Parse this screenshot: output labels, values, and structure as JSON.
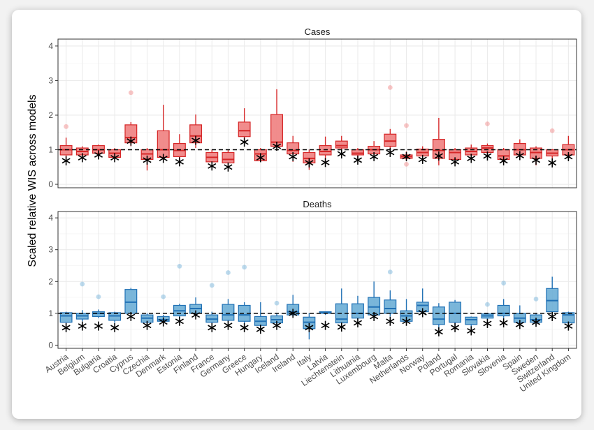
{
  "ylabel": "Scaled relative WIS across models",
  "yticks": [
    0,
    1,
    2,
    3,
    4
  ],
  "countries": [
    "Austria",
    "Belgium",
    "Bulgaria",
    "Croatia",
    "Cyprus",
    "Czechia",
    "Denmark",
    "Estonia",
    "Finland",
    "France",
    "Germany",
    "Greece",
    "Hungary",
    "Iceland",
    "Ireland",
    "Italy",
    "Latvia",
    "Liechtenstein",
    "Lithuania",
    "Luxembourg",
    "Malta",
    "Netherlands",
    "Norway",
    "Poland",
    "Portugal",
    "Romania",
    "Slovakia",
    "Slovenia",
    "Spain",
    "Sweden",
    "Switzerland",
    "United Kingdom"
  ],
  "colors": {
    "cases_fill": "#f08080",
    "cases_line": "#d62728",
    "deaths_fill": "#6baed6",
    "deaths_line": "#2171b5",
    "panel_border": "#333333",
    "grid": "#ebebeb"
  },
  "chart_data": [
    {
      "type": "box",
      "title": "Cases",
      "ylim": [
        -0.1,
        4.2
      ],
      "reference_line": 1,
      "boxes": [
        {
          "q1": 0.85,
          "med": 1.0,
          "q3": 1.12,
          "lo": 0.72,
          "hi": 1.35,
          "out": [
            1.67
          ],
          "star": 0.68
        },
        {
          "q1": 0.85,
          "med": 0.95,
          "q3": 1.05,
          "lo": 0.75,
          "hi": 1.1,
          "out": [],
          "star": 0.77
        },
        {
          "q1": 0.9,
          "med": 1.0,
          "q3": 1.12,
          "lo": 0.8,
          "hi": 1.15,
          "out": [],
          "star": 0.85
        },
        {
          "q1": 0.78,
          "med": 0.9,
          "q3": 1.0,
          "lo": 0.7,
          "hi": 1.05,
          "out": [],
          "star": 0.77
        },
        {
          "q1": 1.2,
          "med": 1.35,
          "q3": 1.72,
          "lo": 1.1,
          "hi": 1.8,
          "out": [
            2.65
          ],
          "star": 1.25
        },
        {
          "q1": 0.72,
          "med": 0.88,
          "q3": 1.0,
          "lo": 0.4,
          "hi": 1.05,
          "out": [],
          "star": 0.7
        },
        {
          "q1": 0.78,
          "med": 1.0,
          "q3": 1.55,
          "lo": 0.72,
          "hi": 2.3,
          "out": [],
          "star": 0.75
        },
        {
          "q1": 0.8,
          "med": 0.98,
          "q3": 1.18,
          "lo": 0.65,
          "hi": 1.45,
          "out": [],
          "star": 0.65
        },
        {
          "q1": 1.2,
          "med": 1.4,
          "q3": 1.72,
          "lo": 1.05,
          "hi": 2.02,
          "out": [],
          "star": 1.27
        },
        {
          "q1": 0.65,
          "med": 0.78,
          "q3": 0.92,
          "lo": 0.55,
          "hi": 1.0,
          "out": [],
          "star": 0.53
        },
        {
          "q1": 0.62,
          "med": 0.72,
          "q3": 0.92,
          "lo": 0.5,
          "hi": 1.0,
          "out": [],
          "star": 0.5
        },
        {
          "q1": 1.38,
          "med": 1.55,
          "q3": 1.8,
          "lo": 1.2,
          "hi": 2.2,
          "out": [],
          "star": 1.22
        },
        {
          "q1": 0.68,
          "med": 0.88,
          "q3": 1.0,
          "lo": 0.65,
          "hi": 1.05,
          "out": [],
          "star": 0.77
        },
        {
          "q1": 1.1,
          "med": 1.22,
          "q3": 2.02,
          "lo": 1.05,
          "hi": 2.75,
          "out": [],
          "star": 1.1
        },
        {
          "q1": 0.88,
          "med": 0.98,
          "q3": 1.2,
          "lo": 0.65,
          "hi": 1.4,
          "out": [],
          "star": 0.8
        },
        {
          "q1": 0.62,
          "med": 0.75,
          "q3": 0.92,
          "lo": 0.42,
          "hi": 1.0,
          "out": [],
          "star": 0.62
        },
        {
          "q1": 0.85,
          "med": 0.95,
          "q3": 1.12,
          "lo": 0.65,
          "hi": 1.38,
          "out": [],
          "star": 0.63
        },
        {
          "q1": 1.05,
          "med": 1.12,
          "q3": 1.25,
          "lo": 0.95,
          "hi": 1.4,
          "out": [],
          "star": 0.88
        },
        {
          "q1": 0.85,
          "med": 0.9,
          "q3": 1.0,
          "lo": 0.7,
          "hi": 1.05,
          "out": [],
          "star": 0.7
        },
        {
          "q1": 0.88,
          "med": 1.0,
          "q3": 1.1,
          "lo": 0.78,
          "hi": 1.25,
          "out": [],
          "star": 0.8
        },
        {
          "q1": 1.1,
          "med": 1.25,
          "q3": 1.45,
          "lo": 1.0,
          "hi": 1.6,
          "out": [
            2.8
          ],
          "star": 0.92
        },
        {
          "q1": 0.75,
          "med": 0.8,
          "q3": 0.85,
          "lo": 0.7,
          "hi": 0.95,
          "out": [
            1.7,
            0.58
          ],
          "star": 0.8
        },
        {
          "q1": 0.82,
          "med": 0.92,
          "q3": 1.02,
          "lo": 0.75,
          "hi": 1.1,
          "out": [],
          "star": 0.72
        },
        {
          "q1": 0.75,
          "med": 0.98,
          "q3": 1.3,
          "lo": 0.55,
          "hi": 1.92,
          "out": [],
          "star": 0.82
        },
        {
          "q1": 0.72,
          "med": 0.92,
          "q3": 1.0,
          "lo": 0.6,
          "hi": 1.05,
          "out": [],
          "star": 0.65
        },
        {
          "q1": 0.85,
          "med": 0.95,
          "q3": 1.05,
          "lo": 0.75,
          "hi": 1.15,
          "out": [],
          "star": 0.75
        },
        {
          "q1": 0.92,
          "med": 1.05,
          "q3": 1.12,
          "lo": 0.85,
          "hi": 1.18,
          "out": [
            1.75
          ],
          "star": 0.82
        },
        {
          "q1": 0.72,
          "med": 0.82,
          "q3": 1.0,
          "lo": 0.6,
          "hi": 1.05,
          "out": [],
          "star": 0.68
        },
        {
          "q1": 0.85,
          "med": 1.0,
          "q3": 1.18,
          "lo": 0.75,
          "hi": 1.3,
          "out": [],
          "star": 0.83
        },
        {
          "q1": 0.75,
          "med": 0.92,
          "q3": 1.05,
          "lo": 0.55,
          "hi": 1.1,
          "out": [],
          "star": 0.7
        },
        {
          "q1": 0.82,
          "med": 0.9,
          "q3": 1.0,
          "lo": 0.75,
          "hi": 1.02,
          "out": [
            1.55
          ],
          "star": 0.62
        },
        {
          "q1": 0.85,
          "med": 1.0,
          "q3": 1.15,
          "lo": 0.75,
          "hi": 1.4,
          "out": [],
          "star": 0.8
        }
      ]
    },
    {
      "type": "box",
      "title": "Deaths",
      "ylim": [
        -0.1,
        4.2
      ],
      "reference_line": 1,
      "boxes": [
        {
          "q1": 0.72,
          "med": 0.92,
          "q3": 1.02,
          "lo": 0.7,
          "hi": 1.05,
          "out": [],
          "star": 0.55
        },
        {
          "q1": 0.82,
          "med": 0.92,
          "q3": 1.0,
          "lo": 0.75,
          "hi": 1.1,
          "out": [
            1.92
          ],
          "star": 0.6
        },
        {
          "q1": 0.9,
          "med": 1.0,
          "q3": 1.05,
          "lo": 0.85,
          "hi": 1.12,
          "out": [
            1.52
          ],
          "star": 0.6
        },
        {
          "q1": 0.78,
          "med": 0.92,
          "q3": 1.02,
          "lo": 0.7,
          "hi": 1.05,
          "out": [],
          "star": 0.55
        },
        {
          "q1": 1.0,
          "med": 1.35,
          "q3": 1.75,
          "lo": 0.92,
          "hi": 1.8,
          "out": [],
          "star": 0.9
        },
        {
          "q1": 0.72,
          "med": 0.85,
          "q3": 0.95,
          "lo": 0.65,
          "hi": 1.0,
          "out": [],
          "star": 0.62
        },
        {
          "q1": 0.75,
          "med": 0.8,
          "q3": 0.9,
          "lo": 0.72,
          "hi": 0.95,
          "out": [
            1.52
          ],
          "star": 0.73
        },
        {
          "q1": 0.92,
          "med": 1.08,
          "q3": 1.25,
          "lo": 0.8,
          "hi": 1.3,
          "out": [
            2.48
          ],
          "star": 0.75
        },
        {
          "q1": 1.0,
          "med": 1.15,
          "q3": 1.28,
          "lo": 0.9,
          "hi": 1.5,
          "out": [],
          "star": 0.95
        },
        {
          "q1": 0.72,
          "med": 0.82,
          "q3": 0.95,
          "lo": 0.6,
          "hi": 1.05,
          "out": [
            1.88
          ],
          "star": 0.55
        },
        {
          "q1": 0.78,
          "med": 0.95,
          "q3": 1.28,
          "lo": 0.7,
          "hi": 1.45,
          "out": [
            2.28
          ],
          "star": 0.62
        },
        {
          "q1": 0.75,
          "med": 0.95,
          "q3": 1.25,
          "lo": 0.65,
          "hi": 1.35,
          "out": [
            2.45
          ],
          "star": 0.55
        },
        {
          "q1": 0.62,
          "med": 0.75,
          "q3": 0.9,
          "lo": 0.55,
          "hi": 1.35,
          "out": [],
          "star": 0.5
        },
        {
          "q1": 0.7,
          "med": 0.8,
          "q3": 0.92,
          "lo": 0.6,
          "hi": 1.0,
          "out": [
            1.32
          ],
          "star": 0.62
        },
        {
          "q1": 0.95,
          "med": 1.05,
          "q3": 1.28,
          "lo": 0.9,
          "hi": 1.58,
          "out": [],
          "star": 1.0
        },
        {
          "q1": 0.52,
          "med": 0.72,
          "q3": 0.88,
          "lo": 0.18,
          "hi": 1.0,
          "out": [],
          "star": 0.55
        },
        {
          "q1": 1.0,
          "med": 1.02,
          "q3": 1.05,
          "lo": 0.95,
          "hi": 1.05,
          "out": [],
          "star": 0.62
        },
        {
          "q1": 0.7,
          "med": 0.82,
          "q3": 1.3,
          "lo": 0.6,
          "hi": 1.78,
          "out": [],
          "star": 0.57
        },
        {
          "q1": 0.85,
          "med": 1.0,
          "q3": 1.3,
          "lo": 0.78,
          "hi": 1.55,
          "out": [],
          "star": 0.7
        },
        {
          "q1": 0.95,
          "med": 1.2,
          "q3": 1.5,
          "lo": 0.85,
          "hi": 2.0,
          "out": [],
          "star": 0.9
        },
        {
          "q1": 1.0,
          "med": 1.15,
          "q3": 1.42,
          "lo": 0.9,
          "hi": 1.72,
          "out": [
            2.3
          ],
          "star": 0.75
        },
        {
          "q1": 0.75,
          "med": 0.92,
          "q3": 1.08,
          "lo": 0.7,
          "hi": 1.45,
          "out": [],
          "star": 0.75
        },
        {
          "q1": 1.05,
          "med": 1.25,
          "q3": 1.35,
          "lo": 1.0,
          "hi": 1.78,
          "out": [],
          "star": 1.02
        },
        {
          "q1": 0.65,
          "med": 0.82,
          "q3": 1.2,
          "lo": 0.5,
          "hi": 1.32,
          "out": [],
          "star": 0.42
        },
        {
          "q1": 0.72,
          "med": 1.0,
          "q3": 1.35,
          "lo": 0.6,
          "hi": 1.42,
          "out": [],
          "star": 0.55
        },
        {
          "q1": 0.65,
          "med": 0.8,
          "q3": 0.88,
          "lo": 0.55,
          "hi": 0.9,
          "out": [],
          "star": 0.45
        },
        {
          "q1": 0.85,
          "med": 0.92,
          "q3": 0.98,
          "lo": 0.8,
          "hi": 1.0,
          "out": [
            1.28
          ],
          "star": 0.68
        },
        {
          "q1": 0.92,
          "med": 1.0,
          "q3": 1.25,
          "lo": 0.85,
          "hi": 1.45,
          "out": [
            1.95
          ],
          "star": 0.7
        },
        {
          "q1": 0.72,
          "med": 0.85,
          "q3": 1.0,
          "lo": 0.62,
          "hi": 1.25,
          "out": [],
          "star": 0.65
        },
        {
          "q1": 0.72,
          "med": 0.8,
          "q3": 0.95,
          "lo": 0.65,
          "hi": 1.0,
          "out": [
            1.45
          ],
          "star": 0.72
        },
        {
          "q1": 1.05,
          "med": 1.4,
          "q3": 1.78,
          "lo": 0.95,
          "hi": 2.15,
          "out": [],
          "star": 0.9
        },
        {
          "q1": 0.7,
          "med": 0.95,
          "q3": 1.02,
          "lo": 0.6,
          "hi": 1.05,
          "out": [],
          "star": 0.6
        }
      ]
    }
  ]
}
